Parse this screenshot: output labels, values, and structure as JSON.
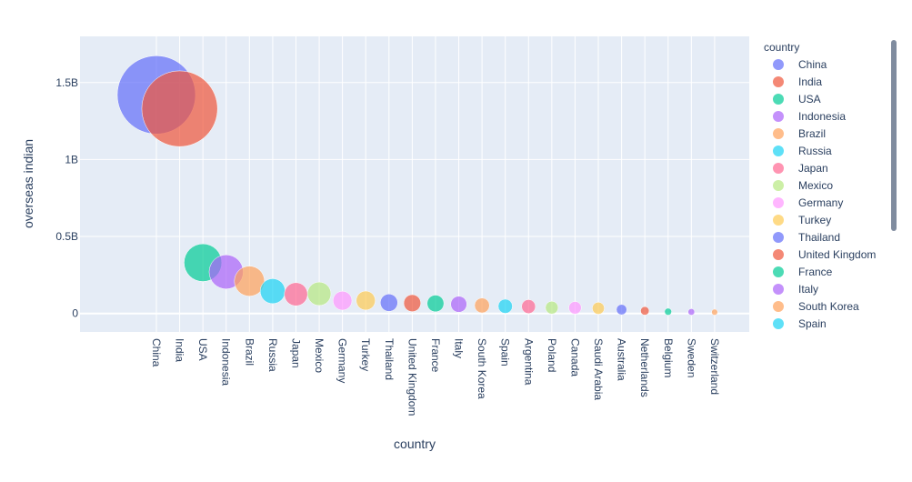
{
  "chart_data": {
    "type": "scatter",
    "title": "",
    "xlabel": "country",
    "ylabel": "overseas indian",
    "ylim": [
      -120000000,
      1800000000
    ],
    "y_tick_values": [
      0,
      500000000,
      1000000000,
      1500000000
    ],
    "y_tick_labels": [
      "0",
      "0.5B",
      "1B",
      "1.5B"
    ],
    "grid": true,
    "legend": {
      "title": "country",
      "placement": "right"
    },
    "palette": [
      "#636efa",
      "#EF553B",
      "#00cc96",
      "#ab63fa",
      "#FFA15A",
      "#19d3f3",
      "#FF6692",
      "#B6E880",
      "#FF97FF",
      "#FECB52"
    ],
    "colors": {
      "plot_background": "#E5ECF6",
      "grid": "#ffffff",
      "text": "#2a3f5f"
    },
    "categories": [
      "China",
      "India",
      "USA",
      "Indonesia",
      "Brazil",
      "Russia",
      "Japan",
      "Mexico",
      "Germany",
      "Turkey",
      "Thailand",
      "United Kingdom",
      "France",
      "Italy",
      "South Korea",
      "Spain",
      "Argentina",
      "Poland",
      "Canada",
      "Saudi Arabia",
      "Australia",
      "Netherlands",
      "Belgium",
      "Sweden",
      "Switzerland"
    ],
    "values": [
      1420000000,
      1330000000,
      330000000,
      270000000,
      210000000,
      145000000,
      125000000,
      128000000,
      83000000,
      84000000,
      70000000,
      67000000,
      65000000,
      60000000,
      52000000,
      47000000,
      45000000,
      38000000,
      37000000,
      34000000,
      25000000,
      17000000,
      11500000,
      10000000,
      8500000
    ],
    "legend_visible": [
      "China",
      "India",
      "USA",
      "Indonesia",
      "Brazil",
      "Russia",
      "Japan",
      "Mexico",
      "Germany",
      "Turkey",
      "Thailand",
      "United Kingdom",
      "France",
      "Italy",
      "South Korea",
      "Spain"
    ]
  }
}
